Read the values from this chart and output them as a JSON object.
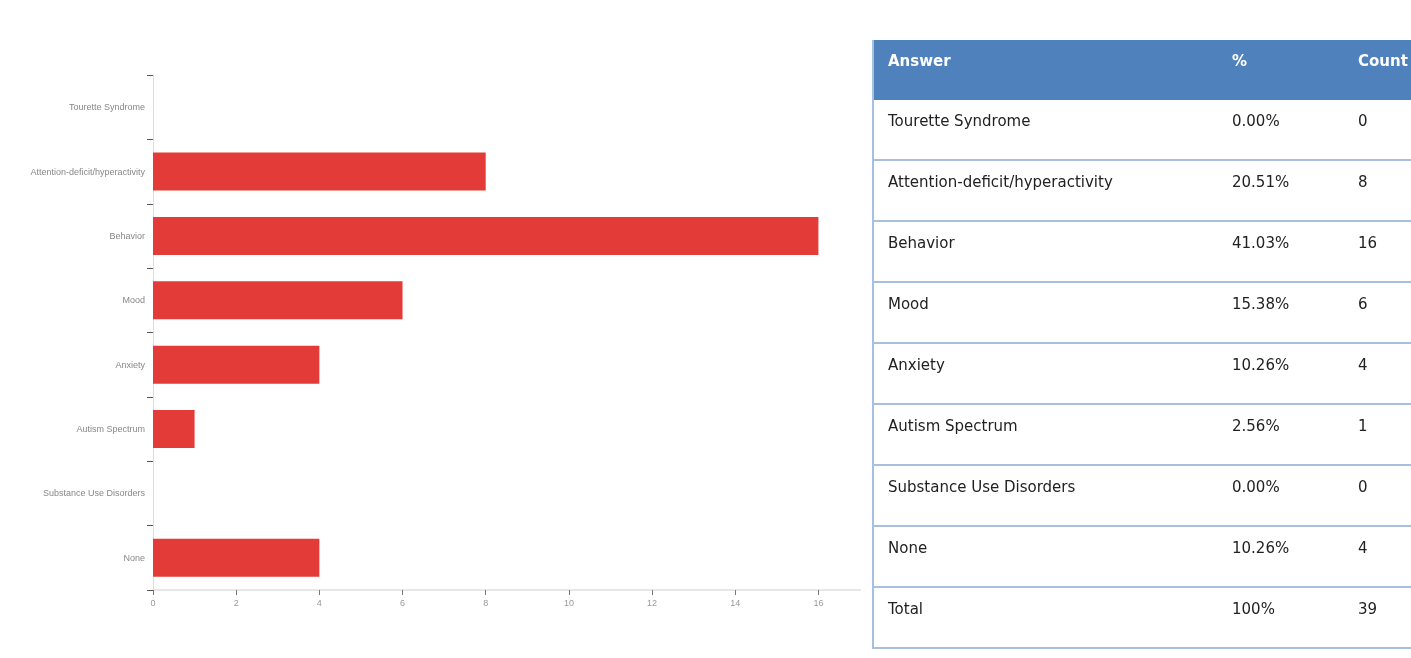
{
  "chart_data": [
    {
      "type": "bar",
      "orientation": "horizontal",
      "categories": [
        "Tourette Syndrome",
        "Attention-deficit/hyperactivity",
        "Behavior",
        "Mood",
        "Anxiety",
        "Autism Spectrum",
        "Substance Use Disorders",
        "None"
      ],
      "values": [
        0,
        8,
        16,
        6,
        4,
        1,
        0,
        4
      ],
      "color": "#e23b38",
      "xlim": [
        0,
        17
      ],
      "xticks": [
        0,
        2,
        4,
        6,
        8,
        10,
        12,
        14,
        16
      ],
      "grid": false
    },
    {
      "type": "other",
      "categories": [
        "Tourette Syndrome",
        "Attention-deficit/hyperactivity",
        "Behavior",
        "Mood",
        "Anxiety",
        "Autism Spectrum",
        "Substance Use Disorders",
        "None"
      ],
      "series": [
        {
          "name": "%",
          "values": [
            0,
            20.51,
            41.03,
            15.38,
            10.26,
            2.56,
            0,
            10.26
          ],
          "value_labels": [
            "0.00%",
            "20.51%",
            "41.03%",
            "15.38%",
            "10.26%",
            "2.56%",
            "0.00%",
            "10.26%"
          ]
        },
        {
          "name": "Count",
          "values": [
            0,
            8,
            16,
            6,
            4,
            1,
            0,
            4
          ]
        }
      ],
      "data_labels": true,
      "annotations": [
        "Answer",
        "Total",
        "100%",
        "39"
      ]
    }
  ]
}
